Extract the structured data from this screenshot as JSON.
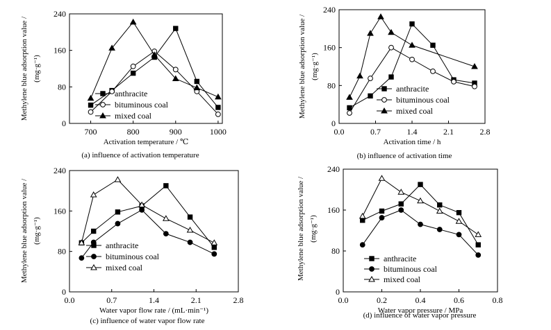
{
  "figure": {
    "ylabel_line1": "Methylene blue adsorption value /",
    "ylabel_unit": "(mg·g⁻¹)"
  },
  "chart_data": [
    {
      "type": "line",
      "caption": "(a) influence of activation temperature",
      "xlabel": "Activation temperature /  ℃",
      "xlim": [
        650,
        1010
      ],
      "ylim": [
        0,
        240
      ],
      "xticks": [
        700,
        800,
        900,
        1000
      ],
      "yticks": [
        0,
        80,
        160,
        240
      ],
      "legend_position": "bottom-right",
      "series": [
        {
          "name": "anthracite",
          "marker": "square",
          "x": [
            700,
            750,
            800,
            850,
            900,
            950,
            1000
          ],
          "y": [
            40,
            72,
            110,
            145,
            208,
            92,
            35
          ]
        },
        {
          "name": "bituminous coal",
          "marker": "circle-open",
          "x": [
            700,
            750,
            800,
            850,
            900,
            950,
            1000
          ],
          "y": [
            25,
            70,
            125,
            158,
            118,
            70,
            20
          ]
        },
        {
          "name": "mixed coal",
          "marker": "triangle",
          "x": [
            700,
            750,
            800,
            850,
            900,
            950,
            1000
          ],
          "y": [
            55,
            165,
            222,
            150,
            98,
            78,
            58
          ]
        }
      ]
    },
    {
      "type": "line",
      "caption": "(b) influence of activation time",
      "xlabel": "Activation time / h",
      "xlim": [
        0,
        2.8
      ],
      "ylim": [
        0,
        240
      ],
      "xticks": [
        "0.0",
        "0.7",
        "1.4",
        "2.1",
        "2.8"
      ],
      "yticks": [
        0,
        80,
        160,
        240
      ],
      "legend_position": "bottom-right",
      "series": [
        {
          "name": "anthracite",
          "marker": "square",
          "x": [
            0.2,
            0.6,
            1.0,
            1.4,
            1.8,
            2.2,
            2.6
          ],
          "y": [
            33,
            58,
            98,
            210,
            165,
            92,
            85
          ]
        },
        {
          "name": "bituminous coal",
          "marker": "circle-open",
          "x": [
            0.2,
            0.6,
            1.0,
            1.4,
            1.8,
            2.2,
            2.6
          ],
          "y": [
            22,
            95,
            160,
            135,
            110,
            88,
            78
          ]
        },
        {
          "name": "mixed coal",
          "marker": "triangle",
          "x": [
            0.2,
            0.4,
            0.6,
            0.8,
            1.0,
            1.4,
            2.6
          ],
          "y": [
            55,
            100,
            190,
            225,
            192,
            165,
            120
          ]
        }
      ]
    },
    {
      "type": "line",
      "caption": "(c) influence of water vapor flow rate",
      "xlabel": "Water vapor flow rate / (mL·min⁻¹)",
      "xlim": [
        0,
        2.8
      ],
      "ylim": [
        0,
        240
      ],
      "xticks": [
        "0.0",
        "0.7",
        "1.4",
        "2.1",
        "2.8"
      ],
      "yticks": [
        0,
        80,
        160,
        240
      ],
      "legend_position": "bottom-left",
      "series": [
        {
          "name": "anthracite",
          "marker": "square",
          "x": [
            0.2,
            0.4,
            0.8,
            1.2,
            1.6,
            2.0,
            2.4
          ],
          "y": [
            97,
            120,
            158,
            170,
            210,
            148,
            88
          ]
        },
        {
          "name": "bituminous coal",
          "marker": "circle",
          "x": [
            0.2,
            0.4,
            0.8,
            1.2,
            1.6,
            2.0,
            2.4
          ],
          "y": [
            67,
            98,
            135,
            162,
            115,
            98,
            75
          ]
        },
        {
          "name": "mixed coal",
          "marker": "triangle-open",
          "x": [
            0.2,
            0.4,
            0.8,
            1.2,
            1.6,
            2.0,
            2.4
          ],
          "y": [
            97,
            192,
            222,
            172,
            145,
            122,
            97
          ]
        }
      ]
    },
    {
      "type": "line",
      "caption": "(d) influence of water vapor pressure",
      "xlabel": "Water vapor pressure / MPa",
      "xlim": [
        0,
        0.8
      ],
      "ylim": [
        0,
        240
      ],
      "xticks": [
        "0.0",
        "0.2",
        "0.4",
        "0.6",
        "0.8"
      ],
      "yticks": [
        0,
        80,
        160,
        240
      ],
      "legend_position": "bottom-center",
      "series": [
        {
          "name": "anthracite",
          "marker": "square",
          "x": [
            0.1,
            0.2,
            0.3,
            0.4,
            0.5,
            0.6,
            0.7
          ],
          "y": [
            140,
            158,
            172,
            210,
            170,
            155,
            92
          ]
        },
        {
          "name": "bituminous coal",
          "marker": "circle",
          "x": [
            0.1,
            0.2,
            0.3,
            0.4,
            0.5,
            0.6,
            0.7
          ],
          "y": [
            92,
            145,
            160,
            132,
            122,
            112,
            72
          ]
        },
        {
          "name": "mixed coal",
          "marker": "triangle-open",
          "x": [
            0.1,
            0.2,
            0.3,
            0.4,
            0.5,
            0.6,
            0.7
          ],
          "y": [
            148,
            222,
            195,
            178,
            158,
            138,
            112
          ]
        }
      ]
    }
  ]
}
